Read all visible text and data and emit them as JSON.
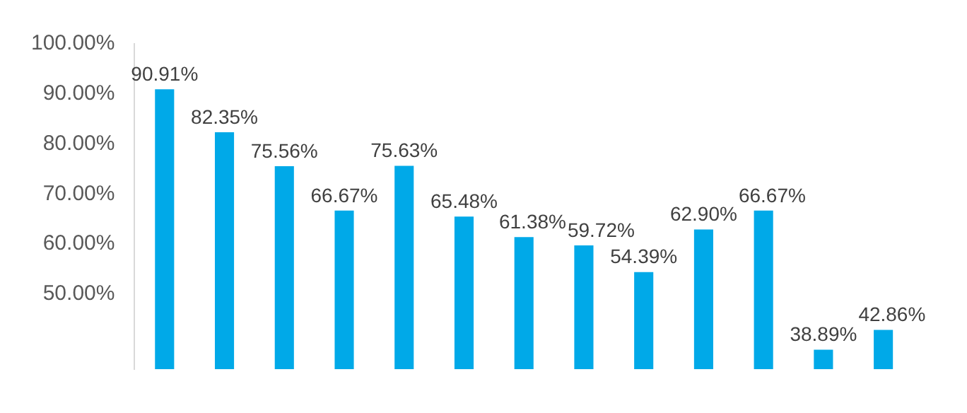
{
  "chart_data": {
    "type": "bar",
    "categories": [
      null,
      null,
      null,
      null,
      null,
      null,
      null,
      null,
      null,
      null,
      null,
      null,
      null
    ],
    "values": [
      90.91,
      82.35,
      75.56,
      66.67,
      75.63,
      65.48,
      61.38,
      59.72,
      54.39,
      62.9,
      66.67,
      38.89,
      42.86
    ],
    "value_labels": [
      "90.91%",
      "82.35%",
      "75.56%",
      "66.67%",
      "75.63%",
      "65.48%",
      "61.38%",
      "59.72%",
      "54.39%",
      "62.90%",
      "66.67%",
      "38.89%",
      "42.86%"
    ],
    "color": "#00a9e8",
    "ylim": [
      35,
      100
    ],
    "yticks": [
      {
        "value": 50,
        "label": "50.00%"
      },
      {
        "value": 60,
        "label": "60.00%"
      },
      {
        "value": 70,
        "label": "70.00%"
      },
      {
        "value": 80,
        "label": "80.00%"
      },
      {
        "value": 90,
        "label": "90.00%"
      },
      {
        "value": 100,
        "label": "100.00%"
      }
    ],
    "grid": false,
    "legend": false
  }
}
